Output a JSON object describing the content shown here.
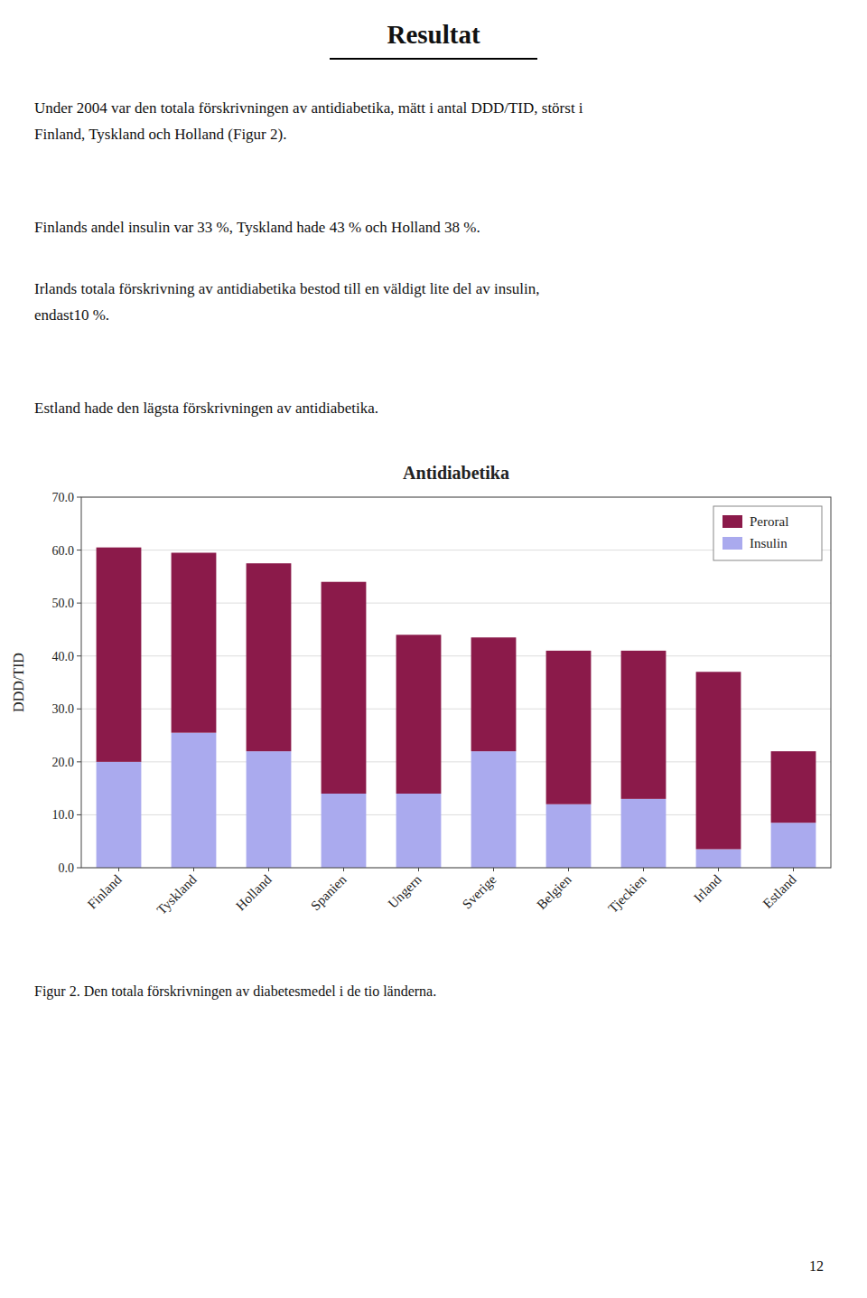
{
  "heading": "Resultat",
  "paragraphs": [
    "Under 2004 var den totala förskrivningen av antidiabetika, mätt i antal DDD/TID, störst i\nFinland, Tyskland och Holland (Figur 2).",
    "Finlands andel insulin var 33 %, Tyskland hade 43 % och Holland 38 %.",
    "Irlands totala förskrivning av antidiabetika bestod till en väldigt lite del av insulin,\nendast10 %.",
    "Estland hade den lägsta förskrivningen av antidiabetika."
  ],
  "caption": "Figur 2. Den totala förskrivningen av diabetesmedel i de tio länderna.",
  "page_number": "12",
  "chart_data": {
    "type": "bar",
    "title": "Antidiabetika",
    "y_label": "DDD/TID",
    "categories": [
      "Finland",
      "Tyskland",
      "Holland",
      "Spanien",
      "Ungern",
      "Sverige",
      "Belgien",
      "Tjeckien",
      "Irland",
      "Estland"
    ],
    "series": [
      {
        "name": "Insulin",
        "color": "#AAAAEE",
        "values": [
          20.0,
          25.5,
          22.0,
          14.0,
          14.0,
          22.0,
          12.0,
          13.0,
          3.5,
          8.5
        ]
      },
      {
        "name": "Peroral",
        "color": "#8B1A4A",
        "values": [
          40.5,
          34.0,
          35.5,
          40.0,
          30.0,
          21.5,
          29.0,
          28.0,
          33.5,
          13.5
        ]
      }
    ],
    "stacked": true,
    "ylim": [
      0,
      70
    ],
    "yticks": [
      {
        "value": 0,
        "label": "0.0"
      },
      {
        "value": 10,
        "label": "10.0"
      },
      {
        "value": 20,
        "label": "20.0"
      },
      {
        "value": 30,
        "label": "30.0"
      },
      {
        "value": 40,
        "label": "40.0"
      },
      {
        "value": 50,
        "label": "50.0"
      },
      {
        "value": 60,
        "label": "60.0"
      },
      {
        "value": 70,
        "label": "70.0"
      }
    ],
    "grid": true,
    "legend": "upper right"
  }
}
